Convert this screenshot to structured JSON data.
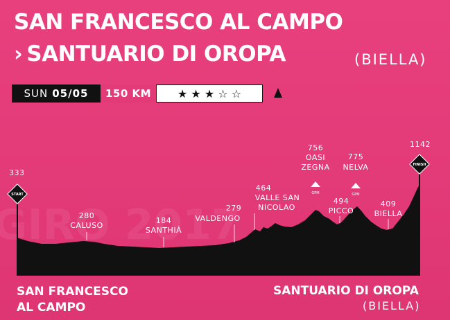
{
  "title": {
    "line1": "SAN FRANCESCO AL CAMPO",
    "arrow": "›",
    "line2": "SANTUARIO DI OROPA",
    "place": "(BIELLA)"
  },
  "info": {
    "day": "SUN",
    "date": "05/05",
    "distance": "150 KM",
    "difficulty": "★ ★ ★ ☆ ☆",
    "difficulty_level": 3,
    "difficulty_max": 5,
    "icon": "mountain-icon"
  },
  "profile": {
    "start_altitude": "333",
    "start_marker": "START",
    "finish_altitude": "1142",
    "finish_marker": "FINISH",
    "points": [
      {
        "altitude": "280",
        "name": "CALUSO"
      },
      {
        "altitude": "184",
        "name": "SANTHIÀ"
      },
      {
        "altitude": "279",
        "name": "VALDENGO"
      },
      {
        "altitude": "464",
        "name_line1": "VALLE SAN",
        "name_line2": "NICOLAO"
      },
      {
        "altitude": "756",
        "name_line1": "OASI",
        "name_line2": "ZEGNA",
        "gpm": "GPM"
      },
      {
        "altitude": "775",
        "name": "NELVA",
        "gpm": "GPM"
      },
      {
        "altitude": "494",
        "name": "PICCO"
      },
      {
        "altitude": "409",
        "name": "BIELLA"
      }
    ],
    "watermark": "GIRO 2017"
  },
  "footer": {
    "start_line1": "SAN FRANCESCO",
    "start_line2": "AL CAMPO",
    "finish": "SANTUARIO DI OROPA",
    "finish_place": "(BIELLA)"
  },
  "colors": {
    "background": "#e33a78",
    "profile": "#111111",
    "text": "#ffffff"
  }
}
